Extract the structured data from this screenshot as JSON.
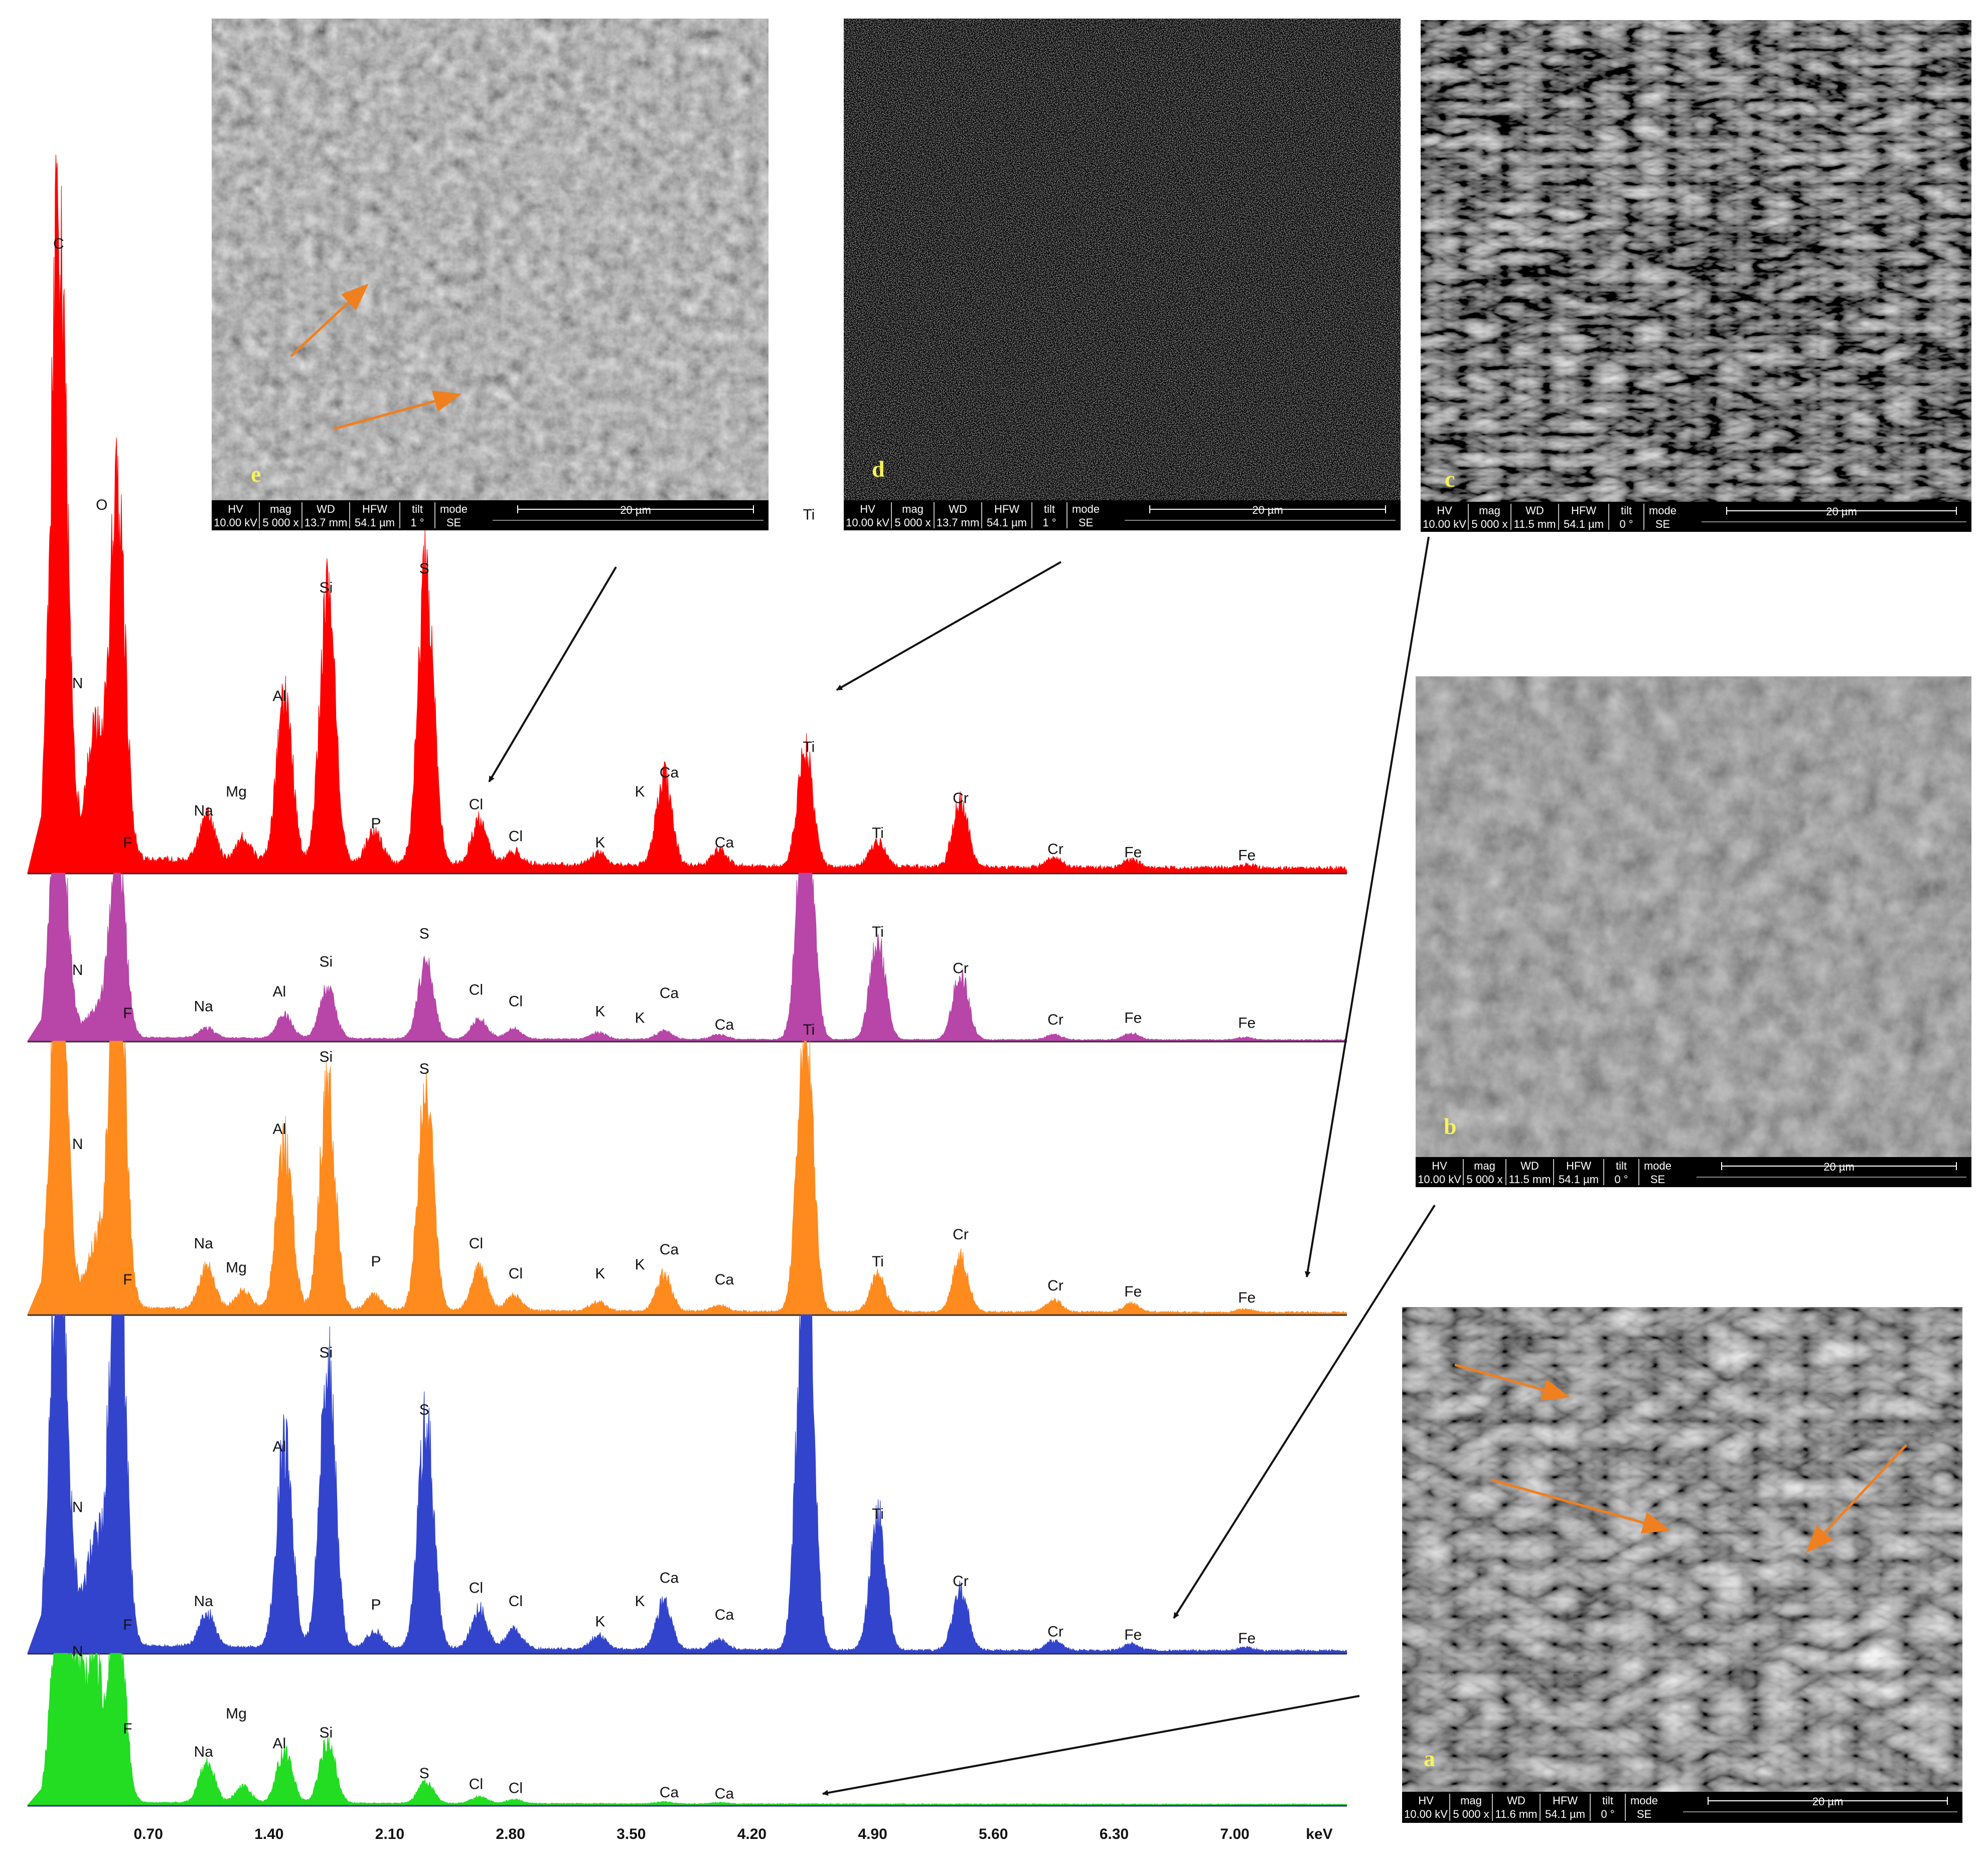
{
  "chart_data": {
    "type": "area",
    "xlabel": "keV",
    "xlim": [
      0.0,
      7.65
    ],
    "x_ticks": [
      "0.70",
      "1.40",
      "2.10",
      "2.80",
      "3.50",
      "4.20",
      "4.90",
      "5.60",
      "6.30",
      "7.00"
    ],
    "x_tick_values": [
      0.7,
      1.4,
      2.1,
      2.8,
      3.5,
      4.2,
      4.9,
      5.6,
      6.3,
      7.0
    ],
    "series": [
      {
        "panel": "e",
        "color": "#ff0000",
        "peaks": [
          [
            0.18,
            1.0
          ],
          [
            0.28,
            0.03
          ],
          [
            0.39,
            0.2
          ],
          [
            0.52,
            0.57
          ],
          [
            1.04,
            0.07
          ],
          [
            1.25,
            0.035
          ],
          [
            1.49,
            0.26
          ],
          [
            1.74,
            0.43
          ],
          [
            2.01,
            0.05
          ],
          [
            2.31,
            0.46
          ],
          [
            2.62,
            0.07
          ],
          [
            2.82,
            0.02
          ],
          [
            3.31,
            0.02
          ],
          [
            3.69,
            0.14
          ],
          [
            4.01,
            0.025
          ],
          [
            4.51,
            0.18
          ],
          [
            4.93,
            0.04
          ],
          [
            5.41,
            0.1
          ],
          [
            5.95,
            0.015
          ],
          [
            6.4,
            0.012
          ],
          [
            7.06,
            0.005
          ]
        ],
        "labels": [
          {
            "text": "C",
            "x": 0.18,
            "y": 0.98
          },
          {
            "text": "N",
            "x": 0.29,
            "y": 0.29
          },
          {
            "text": "O",
            "x": 0.43,
            "y": 0.57
          },
          {
            "text": "F",
            "x": 0.58,
            "y": 0.04
          },
          {
            "text": "Na",
            "x": 1.02,
            "y": 0.09
          },
          {
            "text": "Mg",
            "x": 1.21,
            "y": 0.12
          },
          {
            "text": "Al",
            "x": 1.46,
            "y": 0.27
          },
          {
            "text": "Si",
            "x": 1.73,
            "y": 0.44
          },
          {
            "text": "P",
            "x": 2.02,
            "y": 0.07
          },
          {
            "text": "S",
            "x": 2.3,
            "y": 0.47
          },
          {
            "text": "Cl",
            "x": 2.6,
            "y": 0.1
          },
          {
            "text": "Cl",
            "x": 2.83,
            "y": 0.05
          },
          {
            "text": "K",
            "x": 3.32,
            "y": 0.04
          },
          {
            "text": "K",
            "x": 3.55,
            "y": 0.12
          },
          {
            "text": "Ca",
            "x": 3.72,
            "y": 0.15
          },
          {
            "text": "Ca",
            "x": 4.04,
            "y": 0.04
          },
          {
            "text": "Ti",
            "x": 4.53,
            "y": 0.19
          },
          {
            "text": "Ti",
            "x": 4.93,
            "y": 0.055
          },
          {
            "text": "Cr",
            "x": 5.41,
            "y": 0.11
          },
          {
            "text": "Cr",
            "x": 5.96,
            "y": 0.03
          },
          {
            "text": "Fe",
            "x": 6.41,
            "y": 0.025
          },
          {
            "text": "Fe",
            "x": 7.07,
            "y": 0.02
          }
        ]
      },
      {
        "panel": "d",
        "color": "#b845a8",
        "peaks": [
          [
            0.18,
            1.6
          ],
          [
            0.28,
            0.05
          ],
          [
            0.39,
            0.15
          ],
          [
            0.52,
            1.2
          ],
          [
            1.04,
            0.06
          ],
          [
            1.49,
            0.14
          ],
          [
            1.74,
            0.3
          ],
          [
            2.31,
            0.45
          ],
          [
            2.62,
            0.12
          ],
          [
            2.82,
            0.06
          ],
          [
            3.31,
            0.04
          ],
          [
            3.69,
            0.05
          ],
          [
            4.01,
            0.03
          ],
          [
            4.51,
            1.6
          ],
          [
            4.93,
            0.6
          ],
          [
            5.41,
            0.4
          ],
          [
            5.95,
            0.03
          ],
          [
            6.4,
            0.04
          ],
          [
            7.06,
            0.015
          ]
        ],
        "labels": [
          {
            "text": "N",
            "x": 0.29,
            "y": 0.4
          },
          {
            "text": "F",
            "x": 0.58,
            "y": 0.14
          },
          {
            "text": "Na",
            "x": 1.02,
            "y": 0.18
          },
          {
            "text": "Al",
            "x": 1.46,
            "y": 0.27
          },
          {
            "text": "Si",
            "x": 1.73,
            "y": 0.45
          },
          {
            "text": "S",
            "x": 2.3,
            "y": 0.62
          },
          {
            "text": "Cl",
            "x": 2.6,
            "y": 0.28
          },
          {
            "text": "Cl",
            "x": 2.83,
            "y": 0.21
          },
          {
            "text": "K",
            "x": 3.32,
            "y": 0.15
          },
          {
            "text": "K",
            "x": 3.55,
            "y": 0.11
          },
          {
            "text": "Ca",
            "x": 3.72,
            "y": 0.26
          },
          {
            "text": "Ca",
            "x": 4.04,
            "y": 0.07
          },
          {
            "text": "Ti",
            "x": 4.53,
            "y": 3.15
          },
          {
            "text": "Ti",
            "x": 4.93,
            "y": 0.63
          },
          {
            "text": "Cr",
            "x": 5.41,
            "y": 0.41
          },
          {
            "text": "Cr",
            "x": 5.96,
            "y": 0.1
          },
          {
            "text": "Fe",
            "x": 6.41,
            "y": 0.11
          },
          {
            "text": "Fe",
            "x": 7.07,
            "y": 0.08
          }
        ]
      },
      {
        "panel": "c",
        "color": "#ff8a1e",
        "peaks": [
          [
            0.18,
            1.3
          ],
          [
            0.28,
            0.04
          ],
          [
            0.39,
            0.2
          ],
          [
            0.52,
            1.3
          ],
          [
            1.04,
            0.14
          ],
          [
            1.25,
            0.06
          ],
          [
            1.49,
            0.55
          ],
          [
            1.74,
            0.74
          ],
          [
            2.01,
            0.05
          ],
          [
            2.31,
            0.72
          ],
          [
            2.62,
            0.14
          ],
          [
            2.82,
            0.05
          ],
          [
            3.31,
            0.03
          ],
          [
            3.69,
            0.12
          ],
          [
            4.01,
            0.02
          ],
          [
            4.51,
            0.95
          ],
          [
            4.93,
            0.12
          ],
          [
            5.41,
            0.18
          ],
          [
            5.95,
            0.04
          ],
          [
            6.4,
            0.03
          ],
          [
            7.06,
            0.01
          ]
        ],
        "labels": [
          {
            "text": "N",
            "x": 0.29,
            "y": 0.55
          },
          {
            "text": "F",
            "x": 0.58,
            "y": 0.1
          },
          {
            "text": "Na",
            "x": 1.02,
            "y": 0.22
          },
          {
            "text": "Mg",
            "x": 1.21,
            "y": 0.14
          },
          {
            "text": "Al",
            "x": 1.46,
            "y": 0.6
          },
          {
            "text": "Si",
            "x": 1.73,
            "y": 0.84
          },
          {
            "text": "P",
            "x": 2.02,
            "y": 0.16
          },
          {
            "text": "S",
            "x": 2.3,
            "y": 0.8
          },
          {
            "text": "Cl",
            "x": 2.6,
            "y": 0.22
          },
          {
            "text": "Cl",
            "x": 2.83,
            "y": 0.12
          },
          {
            "text": "K",
            "x": 3.32,
            "y": 0.12
          },
          {
            "text": "K",
            "x": 3.55,
            "y": 0.15
          },
          {
            "text": "Ca",
            "x": 3.72,
            "y": 0.2
          },
          {
            "text": "Ca",
            "x": 4.04,
            "y": 0.1
          },
          {
            "text": "Ti",
            "x": 4.53,
            "y": 0.93
          },
          {
            "text": "Ti",
            "x": 4.93,
            "y": 0.16
          },
          {
            "text": "Cr",
            "x": 5.41,
            "y": 0.25
          },
          {
            "text": "Cr",
            "x": 5.96,
            "y": 0.08
          },
          {
            "text": "Fe",
            "x": 6.41,
            "y": 0.06
          },
          {
            "text": "Fe",
            "x": 7.07,
            "y": 0.04
          }
        ]
      },
      {
        "panel": "b",
        "color": "#3344cc",
        "peaks": [
          [
            0.18,
            1.3
          ],
          [
            0.28,
            0.1
          ],
          [
            0.39,
            0.3
          ],
          [
            0.52,
            1.3
          ],
          [
            1.04,
            0.1
          ],
          [
            1.49,
            0.6
          ],
          [
            1.74,
            0.85
          ],
          [
            2.01,
            0.05
          ],
          [
            2.31,
            0.68
          ],
          [
            2.62,
            0.12
          ],
          [
            2.82,
            0.06
          ],
          [
            3.31,
            0.04
          ],
          [
            3.69,
            0.14
          ],
          [
            4.01,
            0.03
          ],
          [
            4.51,
            1.3
          ],
          [
            4.93,
            0.4
          ],
          [
            5.41,
            0.18
          ],
          [
            5.95,
            0.03
          ],
          [
            6.4,
            0.02
          ],
          [
            7.06,
            0.01
          ]
        ],
        "labels": [
          {
            "text": "N",
            "x": 0.29,
            "y": 0.42
          },
          {
            "text": "F",
            "x": 0.58,
            "y": 0.07
          },
          {
            "text": "Na",
            "x": 1.02,
            "y": 0.14
          },
          {
            "text": "Al",
            "x": 1.46,
            "y": 0.6
          },
          {
            "text": "Si",
            "x": 1.73,
            "y": 0.88
          },
          {
            "text": "P",
            "x": 2.02,
            "y": 0.13
          },
          {
            "text": "S",
            "x": 2.3,
            "y": 0.71
          },
          {
            "text": "Cl",
            "x": 2.6,
            "y": 0.18
          },
          {
            "text": "Cl",
            "x": 2.83,
            "y": 0.14
          },
          {
            "text": "K",
            "x": 3.32,
            "y": 0.08
          },
          {
            "text": "K",
            "x": 3.55,
            "y": 0.14
          },
          {
            "text": "Ca",
            "x": 3.72,
            "y": 0.21
          },
          {
            "text": "Ca",
            "x": 4.04,
            "y": 0.1
          },
          {
            "text": "Ti",
            "x": 4.93,
            "y": 0.4
          },
          {
            "text": "Cr",
            "x": 5.41,
            "y": 0.2
          },
          {
            "text": "Cr",
            "x": 5.96,
            "y": 0.05
          },
          {
            "text": "Fe",
            "x": 6.41,
            "y": 0.04
          },
          {
            "text": "Fe",
            "x": 7.07,
            "y": 0.03
          }
        ]
      },
      {
        "panel": "a",
        "color": "#22dd22",
        "peaks": [
          [
            0.18,
            1.4
          ],
          [
            0.28,
            1.0
          ],
          [
            0.39,
            1.0
          ],
          [
            0.52,
            1.4
          ],
          [
            1.04,
            0.3
          ],
          [
            1.25,
            0.12
          ],
          [
            1.49,
            0.38
          ],
          [
            1.74,
            0.46
          ],
          [
            2.31,
            0.16
          ],
          [
            2.62,
            0.05
          ],
          [
            2.82,
            0.03
          ],
          [
            3.69,
            0.015
          ],
          [
            4.01,
            0.01
          ]
        ],
        "labels": [
          {
            "text": "N",
            "x": 0.29,
            "y": 1.1
          },
          {
            "text": "F",
            "x": 0.58,
            "y": 0.53
          },
          {
            "text": "Na",
            "x": 1.02,
            "y": 0.36
          },
          {
            "text": "Mg",
            "x": 1.21,
            "y": 0.64
          },
          {
            "text": "Al",
            "x": 1.46,
            "y": 0.42
          },
          {
            "text": "Si",
            "x": 1.73,
            "y": 0.5
          },
          {
            "text": "S",
            "x": 2.3,
            "y": 0.2
          },
          {
            "text": "Cl",
            "x": 2.6,
            "y": 0.12
          },
          {
            "text": "Cl",
            "x": 2.83,
            "y": 0.09
          },
          {
            "text": "Ca",
            "x": 3.72,
            "y": 0.06
          },
          {
            "text": "Ca",
            "x": 4.04,
            "y": 0.05
          }
        ]
      }
    ]
  },
  "sem_panels": [
    {
      "letter": "e",
      "texture": "clustered",
      "headers": [
        "HV",
        "mag",
        "WD",
        "HFW",
        "tilt",
        "mode"
      ],
      "values": [
        "10.00 kV",
        "5 000 x",
        "13.7 mm",
        "54.1 µm",
        "1 °",
        "SE"
      ],
      "scale": "20 µm"
    },
    {
      "letter": "d",
      "texture": "dark-speckled",
      "headers": [
        "HV",
        "mag",
        "WD",
        "HFW",
        "tilt",
        "mode"
      ],
      "values": [
        "10.00 kV",
        "5 000 x",
        "13.7 mm",
        "54.1 µm",
        "1 °",
        "SE"
      ],
      "scale": "20 µm"
    },
    {
      "letter": "c",
      "texture": "ridged",
      "headers": [
        "HV",
        "mag",
        "WD",
        "HFW",
        "tilt",
        "mode"
      ],
      "values": [
        "10.00 kV",
        "5 000 x",
        "11.5 mm",
        "54.1 µm",
        "0 °",
        "SE"
      ],
      "scale": "20 µm"
    },
    {
      "letter": "b",
      "texture": "smooth-dark",
      "headers": [
        "HV",
        "mag",
        "WD",
        "HFW",
        "tilt",
        "mode"
      ],
      "values": [
        "10.00 kV",
        "5 000 x",
        "11.5 mm",
        "54.1 µm",
        "0 °",
        "SE"
      ],
      "scale": "20 µm"
    },
    {
      "letter": "a",
      "texture": "wrinkled",
      "headers": [
        "HV",
        "mag",
        "WD",
        "HFW",
        "tilt",
        "mode"
      ],
      "values": [
        "10.00 kV",
        "5 000 x",
        "11.6 mm",
        "54.1 µm",
        "0 °",
        "SE"
      ],
      "scale": "20 µm"
    }
  ],
  "colors": {
    "arrow_black": "#111111",
    "arrow_orange": "#f07f1f",
    "label_yellow": "#f7f25a",
    "infobar": "#000000"
  }
}
